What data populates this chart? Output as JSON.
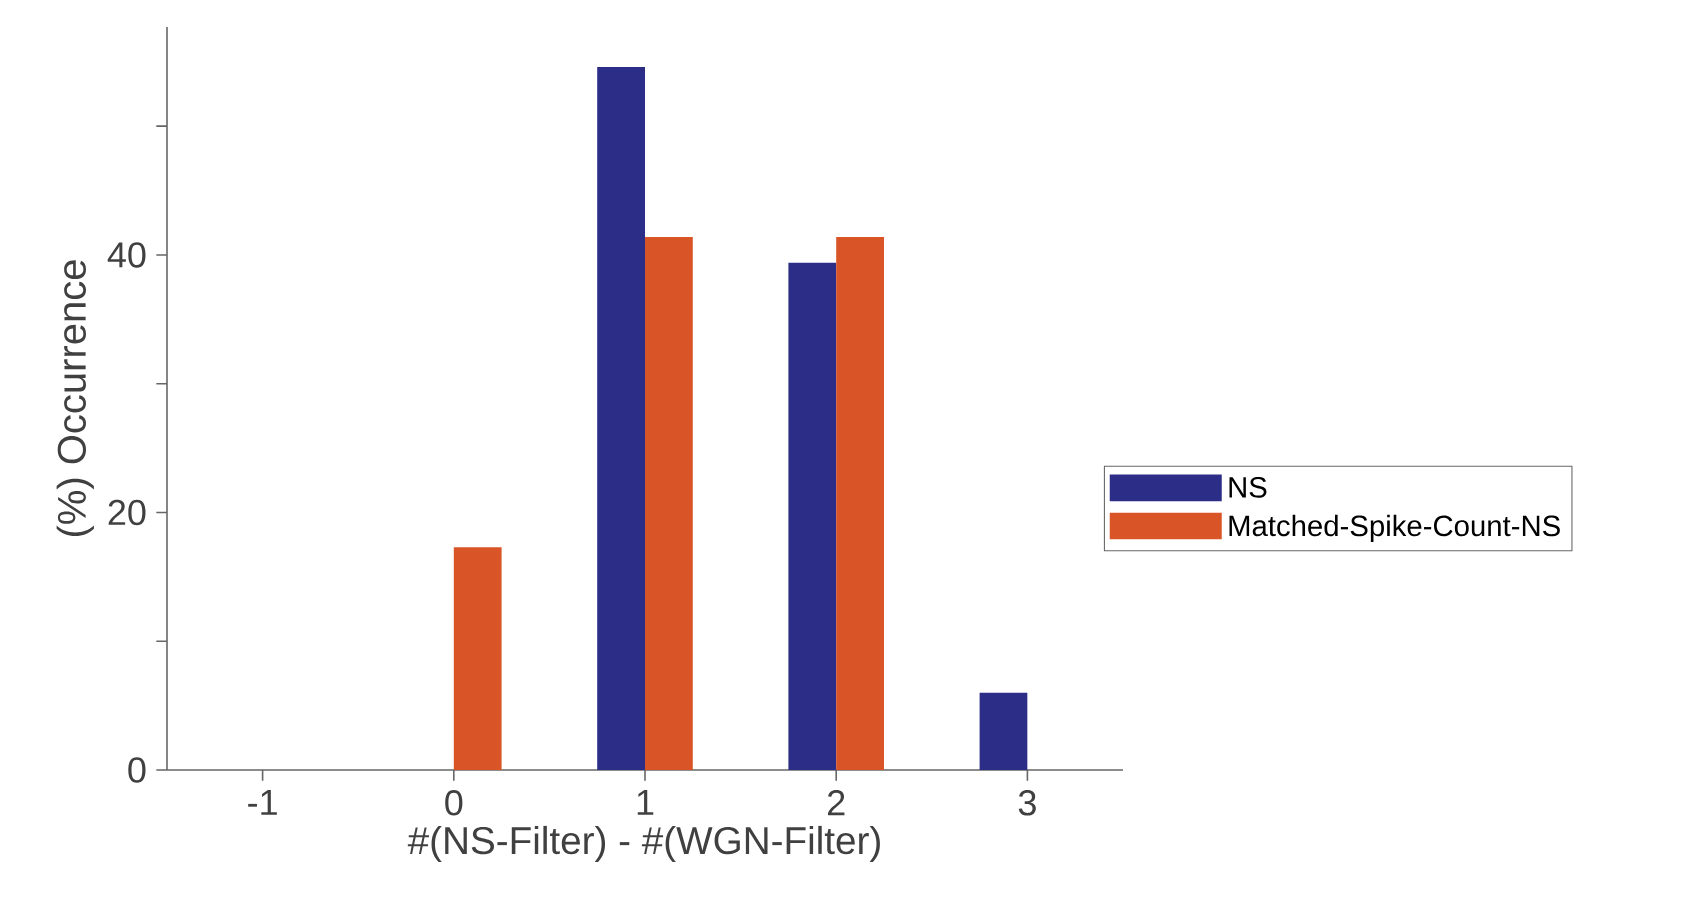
{
  "chart_data": {
    "type": "bar",
    "xlabel": "#(NS-Filter) - #(WGN-Filter)",
    "ylabel": "(%) Occurrence",
    "categories": [
      "-1",
      "0",
      "1",
      "2",
      "3"
    ],
    "series": [
      {
        "name": "NS",
        "color": "#2b2d87",
        "values": [
          0,
          0,
          54.6,
          39.4,
          6.0
        ]
      },
      {
        "name": "Matched-Spike-Count-NS",
        "color": "#d95427",
        "values": [
          0,
          17.3,
          41.4,
          41.4,
          0
        ]
      }
    ],
    "ylim": [
      0,
      57.7
    ],
    "yticks": [
      0,
      {
        "value": 10,
        "label": null
      },
      20,
      {
        "value": 30,
        "label": null
      },
      40,
      {
        "value": 50,
        "label": null
      }
    ],
    "legend": "right",
    "grid": false
  }
}
